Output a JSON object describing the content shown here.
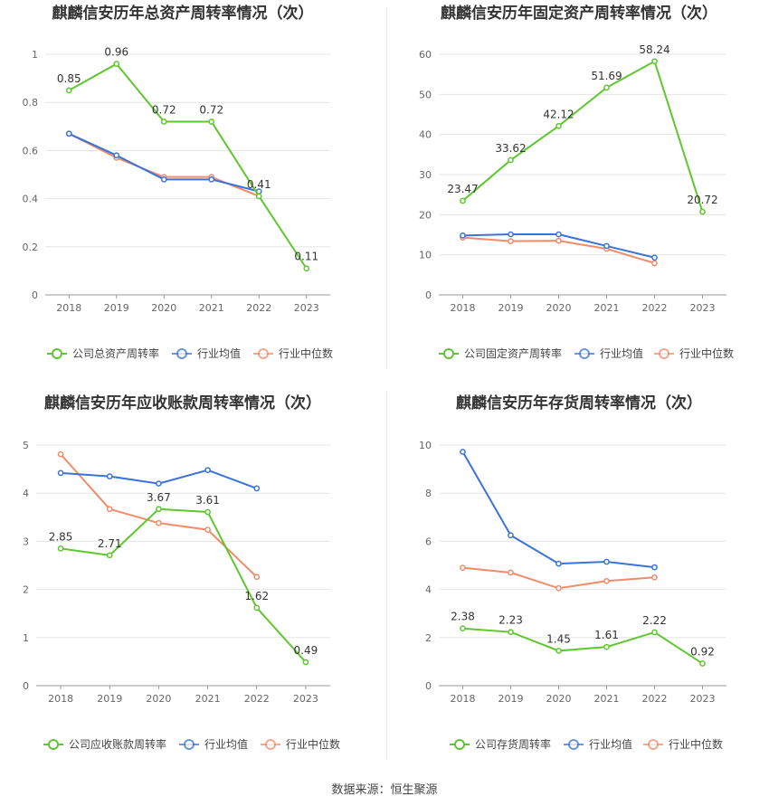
{
  "source_text": "数据来源：恒生聚源",
  "colors": {
    "company": "#5ec72e",
    "avg": "#3b73d9",
    "median": "#f28b69",
    "grid": "#e5e5e5",
    "axis": "#555555"
  },
  "chart_data": [
    {
      "type": "line",
      "title": "麒麟信安历年总资产周转率情况（次）",
      "categories": [
        "2018",
        "2019",
        "2020",
        "2021",
        "2022",
        "2023"
      ],
      "ylim": [
        0,
        1
      ],
      "yticks": [
        "0",
        "0.2",
        "0.4",
        "0.6",
        "0.8",
        "1"
      ],
      "ytick_values": [
        0,
        0.2,
        0.4,
        0.6,
        0.8,
        1
      ],
      "series": [
        {
          "name": "公司总资产周转率",
          "role": "company",
          "values": [
            0.85,
            0.96,
            0.72,
            0.72,
            0.41,
            0.11
          ],
          "labels": [
            "0.85",
            "0.96",
            "0.72",
            "0.72",
            "0.41",
            "0.11"
          ]
        },
        {
          "name": "行业均值",
          "role": "avg",
          "values": [
            0.67,
            0.58,
            0.48,
            0.48,
            0.43,
            null
          ]
        },
        {
          "name": "行业中位数",
          "role": "median",
          "values": [
            0.67,
            0.57,
            0.49,
            0.49,
            0.41,
            null
          ]
        }
      ],
      "legend_position": "bottom"
    },
    {
      "type": "line",
      "title": "麒麟信安历年固定资产周转率情况（次）",
      "categories": [
        "2018",
        "2019",
        "2020",
        "2021",
        "2022",
        "2023"
      ],
      "ylim": [
        0,
        60
      ],
      "yticks": [
        "0",
        "10",
        "20",
        "30",
        "40",
        "50",
        "60"
      ],
      "ytick_values": [
        0,
        10,
        20,
        30,
        40,
        50,
        60
      ],
      "series": [
        {
          "name": "公司固定资产周转率",
          "role": "company",
          "values": [
            23.47,
            33.62,
            42.12,
            51.69,
            58.24,
            20.72
          ],
          "labels": [
            "23.47",
            "33.62",
            "42.12",
            "51.69",
            "58.24",
            "20.72"
          ]
        },
        {
          "name": "行业均值",
          "role": "avg",
          "values": [
            14.8,
            15.1,
            15.1,
            12.2,
            9.3,
            null
          ]
        },
        {
          "name": "行业中位数",
          "role": "median",
          "values": [
            14.3,
            13.4,
            13.5,
            11.5,
            7.9,
            null
          ]
        }
      ],
      "legend_position": "bottom"
    },
    {
      "type": "line",
      "title": "麒麟信安历年应收账款周转率情况（次）",
      "categories": [
        "2018",
        "2019",
        "2020",
        "2021",
        "2022",
        "2023"
      ],
      "ylim": [
        0,
        5
      ],
      "yticks": [
        "0",
        "1",
        "2",
        "3",
        "4",
        "5"
      ],
      "ytick_values": [
        0,
        1,
        2,
        3,
        4,
        5
      ],
      "series": [
        {
          "name": "公司应收账款周转率",
          "role": "company",
          "values": [
            2.85,
            2.71,
            3.67,
            3.61,
            1.62,
            0.49
          ],
          "labels": [
            "2.85",
            "2.71",
            "3.67",
            "3.61",
            "1.62",
            "0.49"
          ]
        },
        {
          "name": "行业均值",
          "role": "avg",
          "values": [
            4.42,
            4.35,
            4.2,
            4.48,
            4.1,
            null
          ]
        },
        {
          "name": "行业中位数",
          "role": "median",
          "values": [
            4.81,
            3.67,
            3.38,
            3.24,
            2.26,
            null
          ]
        }
      ],
      "legend_position": "bottom"
    },
    {
      "type": "line",
      "title": "麒麟信安历年存货周转率情况（次）",
      "categories": [
        "2018",
        "2019",
        "2020",
        "2021",
        "2022",
        "2023"
      ],
      "ylim": [
        0,
        10
      ],
      "yticks": [
        "0",
        "2",
        "4",
        "6",
        "8",
        "10"
      ],
      "ytick_values": [
        0,
        2,
        4,
        6,
        8,
        10
      ],
      "series": [
        {
          "name": "公司存货周转率",
          "role": "company",
          "values": [
            2.38,
            2.23,
            1.45,
            1.61,
            2.22,
            0.92
          ],
          "labels": [
            "2.38",
            "2.23",
            "1.45",
            "1.61",
            "2.22",
            "0.92"
          ]
        },
        {
          "name": "行业均值",
          "role": "avg",
          "values": [
            9.72,
            6.25,
            5.07,
            5.15,
            4.92,
            null
          ]
        },
        {
          "name": "行业中位数",
          "role": "median",
          "values": [
            4.9,
            4.7,
            4.05,
            4.35,
            4.5,
            null
          ]
        }
      ],
      "legend_position": "bottom"
    }
  ]
}
